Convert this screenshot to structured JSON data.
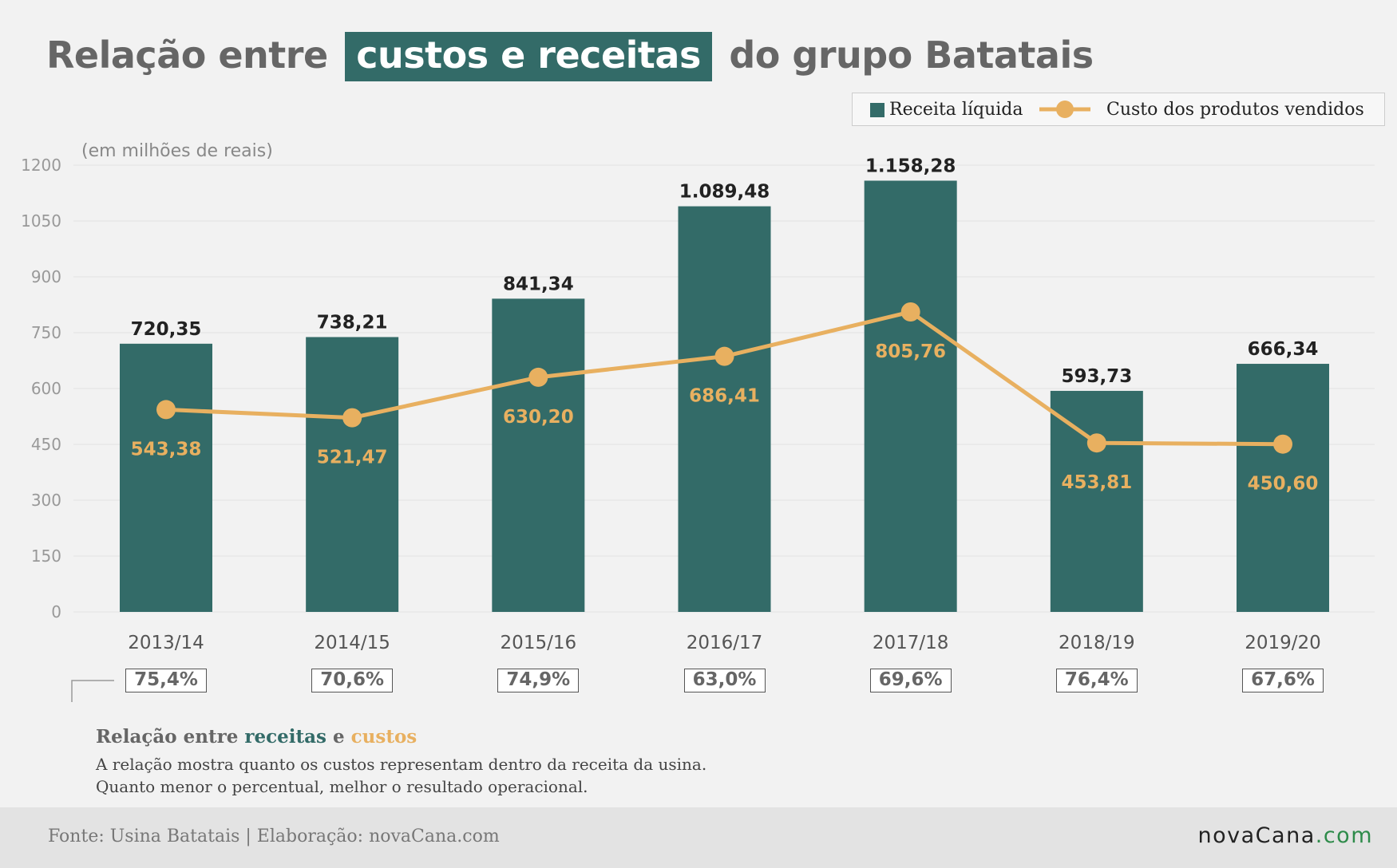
{
  "title": {
    "before": "Relação entre",
    "highlight": "custos e receitas",
    "after": "do grupo Batatais"
  },
  "legend": {
    "bar_label": "Receita líquida",
    "line_label": "Custo dos produtos vendidos"
  },
  "chart_data": {
    "type": "bar",
    "title": "Relação entre custos e receitas do grupo Batatais",
    "unit_note": "(em milhões de reais)",
    "categories": [
      "2013/14",
      "2014/15",
      "2015/16",
      "2016/17",
      "2017/18",
      "2018/19",
      "2019/20"
    ],
    "series": [
      {
        "name": "Receita líquida",
        "type": "bar",
        "color": "#336b68",
        "values": [
          720.35,
          738.21,
          841.34,
          1089.48,
          1158.28,
          593.73,
          666.34
        ],
        "labels": [
          "720,35",
          "738,21",
          "841,34",
          "1.089,48",
          "1.158,28",
          "593,73",
          "666,34"
        ]
      },
      {
        "name": "Custo dos produtos vendidos",
        "type": "line",
        "color": "#e8b060",
        "values": [
          543.38,
          521.47,
          630.2,
          686.41,
          805.76,
          453.81,
          450.6
        ],
        "labels": [
          "543,38",
          "521,47",
          "630,20",
          "686,41",
          "805,76",
          "453,81",
          "450,60"
        ]
      }
    ],
    "yticks": [
      0,
      150,
      300,
      450,
      600,
      750,
      900,
      1050,
      1200
    ],
    "ylim": [
      0,
      1200
    ],
    "grid": true,
    "legend_position": "top-right"
  },
  "ratios": [
    "75,4%",
    "70,6%",
    "74,9%",
    "63,0%",
    "69,6%",
    "76,4%",
    "67,6%"
  ],
  "note": {
    "title_prefix": "Relação entre",
    "title_receitas": "receitas",
    "title_e": "e",
    "title_custos": "custos",
    "line1": "A relação mostra quanto os custos representam dentro da receita da usina.",
    "line2": "Quanto menor o percentual, melhor o resultado operacional."
  },
  "footer": {
    "source": "Fonte: Usina Batatais | Elaboração: novaCana.com",
    "logo_main": "novaCana",
    "logo_suffix": ".com"
  },
  "colors": {
    "bar": "#336b68",
    "line": "#e8b060",
    "background": "#f2f2f2"
  }
}
